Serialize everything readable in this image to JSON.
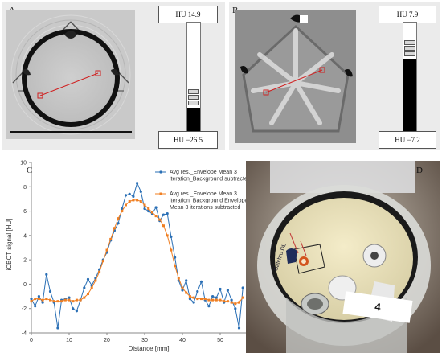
{
  "panels": {
    "a": {
      "label": "A",
      "hu_top": "HU 14.9",
      "hu_bottom": "HU −26.5",
      "slider_position": 0.78
    },
    "b": {
      "label": "B",
      "hu_top": "HU 7.9",
      "hu_bottom": "HU −7.2",
      "slider_position": 0.25
    },
    "c": {
      "label": "C"
    },
    "d": {
      "label": "D",
      "tape_label": "4",
      "phantom_text": "Gafchro DL"
    }
  },
  "chart_data": {
    "type": "line",
    "xlabel": "Distance [mm]",
    "ylabel": "iCBCT signal [HU]",
    "xlim": [
      0,
      60
    ],
    "ylim": [
      -4,
      10
    ],
    "xticks": [
      0,
      10,
      20,
      30,
      40,
      50,
      60
    ],
    "yticks": [
      -4,
      -2,
      0,
      2,
      4,
      6,
      8,
      10
    ],
    "grid": false,
    "legend_position": "top-right",
    "series": [
      {
        "name": "Avg res._Envelope Mean 3 iteration_Background subtracted",
        "color": "#2a6fb5",
        "marker": "circle",
        "x": [
          0,
          1,
          2,
          3,
          4,
          5,
          6,
          7,
          8,
          9,
          10,
          11,
          12,
          13,
          14,
          15,
          16,
          17,
          18,
          19,
          20,
          21,
          22,
          23,
          24,
          25,
          26,
          27,
          28,
          29,
          30,
          31,
          32,
          33,
          34,
          35,
          36,
          37,
          38,
          39,
          40,
          41,
          42,
          43,
          44,
          45,
          46,
          47,
          48,
          49,
          50,
          51,
          52,
          53,
          54,
          55,
          56
        ],
        "y": [
          -1.2,
          -1.8,
          -1.0,
          -1.5,
          0.8,
          -0.6,
          -1.5,
          -3.6,
          -1.3,
          -1.2,
          -1.1,
          -2.0,
          -2.2,
          -1.3,
          -0.3,
          0.4,
          -0.1,
          0.5,
          1.2,
          2.0,
          2.6,
          3.6,
          4.4,
          5.0,
          6.2,
          7.3,
          7.4,
          7.2,
          8.3,
          7.6,
          6.2,
          6.0,
          5.8,
          6.3,
          5.2,
          5.7,
          5.8,
          3.9,
          2.2,
          0.3,
          -0.5,
          0.3,
          -1.2,
          -1.5,
          -0.6,
          0.2,
          -1.3,
          -1.8,
          -1.0,
          -1.1,
          -0.4,
          -1.5,
          -0.5,
          -1.3,
          -2.0,
          -3.6,
          -0.3
        ]
      },
      {
        "name": "Avg res._Envelope Mean 3 iteration_Background Envelope Mean 3 iterations subtracted",
        "color": "#f07f22",
        "marker": "square",
        "x": [
          0,
          1,
          2,
          3,
          4,
          5,
          6,
          7,
          8,
          9,
          10,
          11,
          12,
          13,
          14,
          15,
          16,
          17,
          18,
          19,
          20,
          21,
          22,
          23,
          24,
          25,
          26,
          27,
          28,
          29,
          30,
          31,
          32,
          33,
          34,
          35,
          36,
          37,
          38,
          39,
          40,
          41,
          42,
          43,
          44,
          45,
          46,
          47,
          48,
          49,
          50,
          51,
          52,
          53,
          54,
          55,
          56
        ],
        "y": [
          -1.4,
          -1.2,
          -1.2,
          -1.3,
          -1.2,
          -1.3,
          -1.4,
          -1.4,
          -1.4,
          -1.3,
          -1.3,
          -1.4,
          -1.3,
          -1.3,
          -1.1,
          -0.8,
          -0.3,
          0.3,
          1.0,
          1.9,
          2.8,
          3.7,
          4.6,
          5.4,
          6.0,
          6.5,
          6.8,
          6.9,
          6.9,
          6.8,
          6.5,
          6.2,
          5.9,
          5.6,
          5.3,
          4.8,
          4.0,
          2.8,
          1.5,
          0.5,
          -0.3,
          -0.7,
          -1.0,
          -1.1,
          -1.2,
          -1.2,
          -1.2,
          -1.3,
          -1.3,
          -1.3,
          -1.3,
          -1.4,
          -1.4,
          -1.5,
          -1.6,
          -1.5,
          -1.1
        ]
      }
    ]
  }
}
